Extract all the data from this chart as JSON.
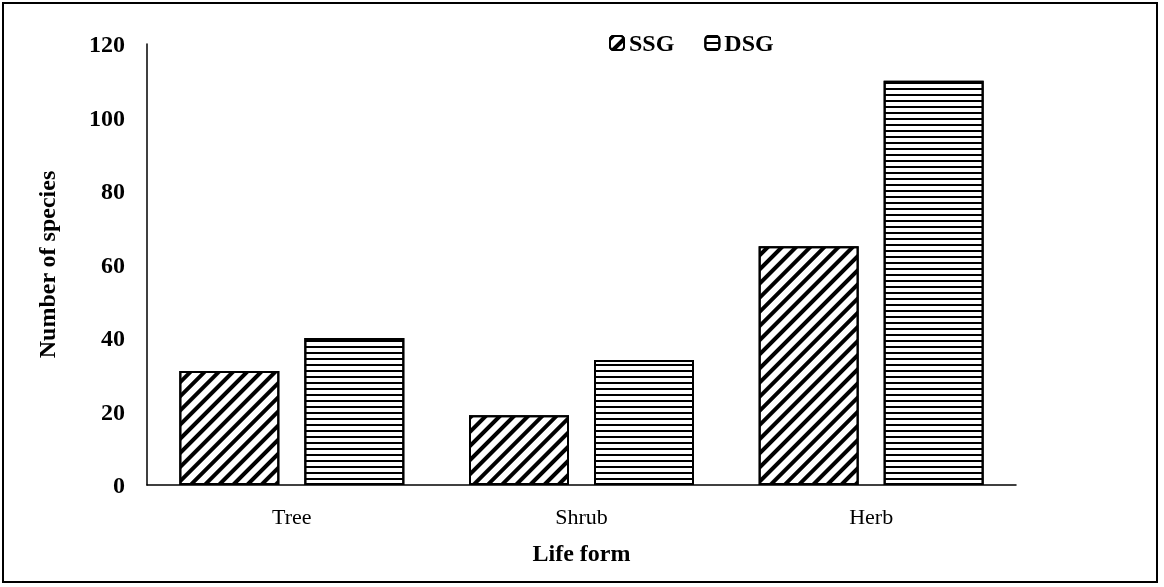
{
  "chart_data": {
    "type": "bar",
    "xlabel": "Life form",
    "ylabel": "Number of species",
    "categories": [
      "Tree",
      "Shrub",
      "Herb"
    ],
    "series": [
      {
        "name": "SSG",
        "color": "#000000",
        "values": [
          31,
          19,
          65
        ]
      },
      {
        "name": "DSG",
        "color": "#000000",
        "values": [
          40,
          34,
          110
        ]
      }
    ],
    "ylim": [
      0,
      120
    ],
    "yticks": [
      0,
      20,
      40,
      60,
      80,
      100,
      120
    ],
    "grid": false,
    "legend": "top"
  }
}
